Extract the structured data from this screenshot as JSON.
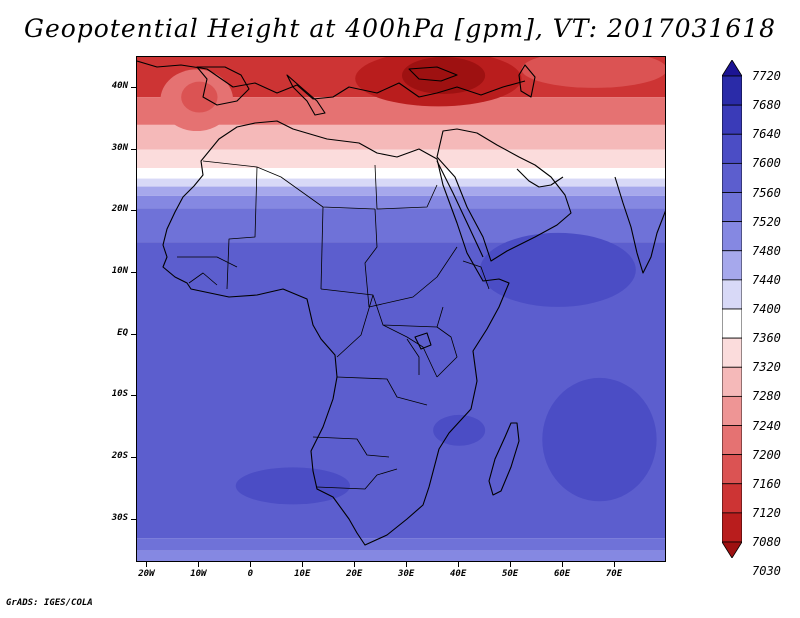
{
  "title": "Geopotential Height at 400hPa [gpm], VT: 2017031618",
  "credit": "GrADS: IGES/COLA",
  "map": {
    "lon_range": [
      -22,
      80
    ],
    "lat_range": [
      -37,
      45
    ],
    "lat_labels": [
      {
        "lat": 40,
        "text": "40N"
      },
      {
        "lat": 30,
        "text": "30N"
      },
      {
        "lat": 20,
        "text": "20N"
      },
      {
        "lat": 10,
        "text": "10N"
      },
      {
        "lat": 0,
        "text": "EQ"
      },
      {
        "lat": -10,
        "text": "10S"
      },
      {
        "lat": -20,
        "text": "20S"
      },
      {
        "lat": -30,
        "text": "30S"
      }
    ],
    "lon_labels": [
      {
        "lon": -20,
        "text": "20W"
      },
      {
        "lon": -10,
        "text": "10W"
      },
      {
        "lon": 0,
        "text": "0"
      },
      {
        "lon": 10,
        "text": "10E"
      },
      {
        "lon": 20,
        "text": "20E"
      },
      {
        "lon": 30,
        "text": "30E"
      },
      {
        "lon": 40,
        "text": "40E"
      },
      {
        "lon": 50,
        "text": "50E"
      },
      {
        "lon": 60,
        "text": "60E"
      },
      {
        "lon": 70,
        "text": "70E"
      }
    ]
  },
  "colorbar": {
    "labels": [
      "7720",
      "7680",
      "7640",
      "7600",
      "7560",
      "7520",
      "7480",
      "7440",
      "7400",
      "7360",
      "7320",
      "7280",
      "7240",
      "7200",
      "7160",
      "7120",
      "7080",
      "7030"
    ],
    "colors": [
      "#1c1494",
      "#2a2ba8",
      "#3a3bb8",
      "#4b4dc5",
      "#5c5ece",
      "#6f72d8",
      "#8588e2",
      "#a6a8ec",
      "#d8d9f7",
      "#ffffff",
      "#fbdcdc",
      "#f5b9b9",
      "#ee9595",
      "#e57272",
      "#db5353",
      "#cd3434",
      "#b91d1d",
      "#9e1111"
    ]
  },
  "bands": [
    {
      "lat_top": 45,
      "lat_bottom": 38.5,
      "color": "#cd3434"
    },
    {
      "lat_top": 38.5,
      "lat_bottom": 34,
      "color": "#e57272"
    },
    {
      "lat_top": 34,
      "lat_bottom": 30,
      "color": "#f5b9b9"
    },
    {
      "lat_top": 30,
      "lat_bottom": 27,
      "color": "#fbdcdc"
    },
    {
      "lat_top": 27,
      "lat_bottom": 25.3,
      "color": "#ffffff"
    },
    {
      "lat_top": 25.3,
      "lat_bottom": 24,
      "color": "#d8d9f7"
    },
    {
      "lat_top": 24,
      "lat_bottom": 22.5,
      "color": "#a6a8ec"
    },
    {
      "lat_top": 22.5,
      "lat_bottom": 20.5,
      "color": "#8588e2"
    },
    {
      "lat_top": 20.5,
      "lat_bottom": 15,
      "color": "#6f72d8"
    },
    {
      "lat_top": 15,
      "lat_bottom": -33,
      "color": "#5c5ece"
    },
    {
      "lat_top": -33,
      "lat_bottom": -35,
      "color": "#6f72d8"
    },
    {
      "lat_top": -35,
      "lat_bottom": -37,
      "color": "#8588e2"
    }
  ],
  "blobs": [
    {
      "name": "turkey-low",
      "lon": 36,
      "lat": 41.5,
      "rlon": 16,
      "rlat": 4.5,
      "color": "#b91d1d"
    },
    {
      "name": "turkey-core",
      "lon": 37,
      "lat": 42,
      "rlon": 8,
      "rlat": 3,
      "color": "#9e1111"
    },
    {
      "name": "morocco-low",
      "lon": -10.5,
      "lat": 38,
      "rlon": 7,
      "rlat": 5,
      "color": "#e57272"
    },
    {
      "name": "morocco-core",
      "lon": -10,
      "lat": 38.5,
      "rlon": 3.5,
      "rlat": 2.5,
      "color": "#db5353"
    },
    {
      "name": "east-red",
      "lon": 66,
      "lat": 43,
      "rlon": 14,
      "rlat": 3,
      "color": "#db5353"
    },
    {
      "name": "arabian-high",
      "lon": 59,
      "lat": 10.5,
      "rlon": 15,
      "rlat": 6,
      "color": "#4b4dc5"
    },
    {
      "name": "indian-high",
      "lon": 67,
      "lat": -17,
      "rlon": 11,
      "rlat": 10,
      "color": "#4b4dc5"
    },
    {
      "name": "atlantic-high",
      "lon": 8,
      "lat": -24.5,
      "rlon": 11,
      "rlat": 3,
      "color": "#4b4dc5"
    },
    {
      "name": "mozambique-high",
      "lon": 40,
      "lat": -15.5,
      "rlon": 5,
      "rlat": 2.5,
      "color": "#4b4dc5"
    }
  ]
}
